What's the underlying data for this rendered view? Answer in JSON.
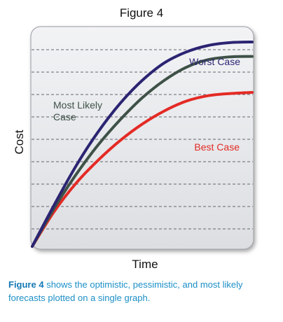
{
  "figure_title": "Figure 4",
  "caption": {
    "strong": "Figure 4",
    "rest": " shows the optimistic, pessimistic, and most likely forecasts plotted on a single graph."
  },
  "chart_data": {
    "type": "line",
    "title": "Figure 4",
    "xlabel": "Time",
    "ylabel": "Cost",
    "xlim": [
      0,
      10
    ],
    "ylim": [
      0,
      10
    ],
    "grid": true,
    "grid_style": "dashed horizontal",
    "legend_placement": "inline labels",
    "series": [
      {
        "name": "Worst Case",
        "color": "#2b2472",
        "x": [
          0,
          1,
          2,
          3,
          4,
          5,
          6,
          7,
          8,
          9,
          10
        ],
        "y": [
          0,
          1.9,
          3.7,
          5.25,
          6.55,
          7.6,
          8.4,
          8.9,
          9.2,
          9.33,
          9.36
        ]
      },
      {
        "name": "Most Likely Case",
        "color": "#3e5147",
        "x": [
          0,
          1,
          2,
          3,
          4,
          5,
          6,
          7,
          8,
          9,
          10
        ],
        "y": [
          0,
          1.75,
          3.3,
          4.65,
          5.8,
          6.8,
          7.6,
          8.2,
          8.55,
          8.68,
          8.7
        ]
      },
      {
        "name": "Best Case",
        "color": "#e42a25",
        "x": [
          0,
          1,
          2,
          3,
          4,
          5,
          6,
          7,
          8,
          9,
          10
        ],
        "y": [
          0,
          1.6,
          2.9,
          3.95,
          4.85,
          5.6,
          6.2,
          6.65,
          6.9,
          7.0,
          7.05
        ]
      }
    ]
  }
}
